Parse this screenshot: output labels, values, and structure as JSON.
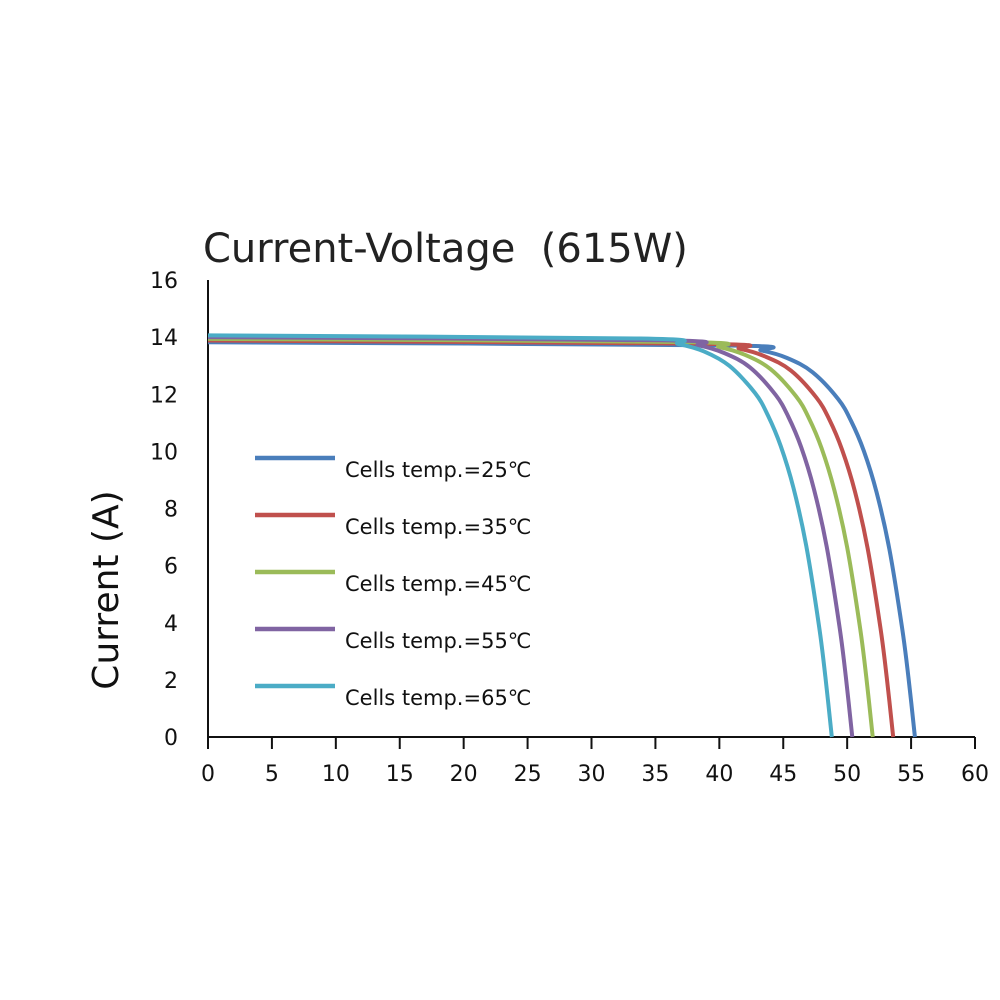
{
  "chart_data": {
    "type": "line",
    "title": "Current-Voltage  (615W)",
    "xlabel": "",
    "ylabel": "Current (A)",
    "xlim": [
      0,
      60
    ],
    "ylim": [
      0,
      16
    ],
    "xticks": [
      0,
      5,
      10,
      15,
      20,
      25,
      30,
      35,
      40,
      45,
      50,
      55,
      60
    ],
    "yticks": [
      0,
      2,
      4,
      6,
      8,
      10,
      12,
      14,
      16
    ],
    "grid": false,
    "legend_placement": "center-left",
    "series": [
      {
        "name": "Cells temp.=25℃",
        "color": "#4a7ebb",
        "x": [
          0,
          40.3,
          43.3,
          45.3,
          47.3,
          49.3,
          50.3,
          51.3,
          52.3,
          53.3,
          54.3,
          54.8,
          55.3
        ],
        "y": [
          13.82,
          13.71,
          13.53,
          13.27,
          12.77,
          11.83,
          11.07,
          10.02,
          8.57,
          6.58,
          3.81,
          2.06,
          0
        ]
      },
      {
        "name": "Cells temp.=35℃",
        "color": "#c0504d",
        "x": [
          0,
          38.6,
          41.6,
          43.6,
          45.6,
          47.6,
          48.6,
          49.6,
          50.6,
          51.6,
          52.6,
          53.1,
          53.6
        ],
        "y": [
          13.88,
          13.77,
          13.59,
          13.32,
          12.83,
          11.88,
          11.12,
          10.06,
          8.61,
          6.61,
          3.83,
          2.07,
          0
        ]
      },
      {
        "name": "Cells temp.=45℃",
        "color": "#9bbb59",
        "x": [
          0,
          37,
          40,
          42,
          44,
          46,
          47,
          48,
          49,
          50,
          51,
          51.5,
          52
        ],
        "y": [
          13.94,
          13.83,
          13.65,
          13.38,
          12.88,
          11.93,
          11.17,
          10.11,
          8.64,
          6.64,
          3.85,
          2.08,
          0
        ]
      },
      {
        "name": "Cells temp.=55℃",
        "color": "#8064a2",
        "x": [
          0,
          35.4,
          38.4,
          40.4,
          42.4,
          44.4,
          45.4,
          46.4,
          47.4,
          48.4,
          49.4,
          49.9,
          50.4
        ],
        "y": [
          14.0,
          13.89,
          13.71,
          13.44,
          12.94,
          11.98,
          11.21,
          10.15,
          8.68,
          6.66,
          3.86,
          2.09,
          0
        ]
      },
      {
        "name": "Cells temp.=65℃",
        "color": "#4bacc6",
        "x": [
          0,
          33.8,
          36.8,
          38.8,
          40.8,
          42.8,
          43.8,
          44.8,
          45.8,
          46.8,
          47.8,
          48.3,
          48.8
        ],
        "y": [
          14.06,
          13.95,
          13.76,
          13.5,
          12.99,
          12.04,
          11.26,
          10.19,
          8.72,
          6.69,
          3.88,
          2.09,
          0
        ]
      }
    ]
  }
}
